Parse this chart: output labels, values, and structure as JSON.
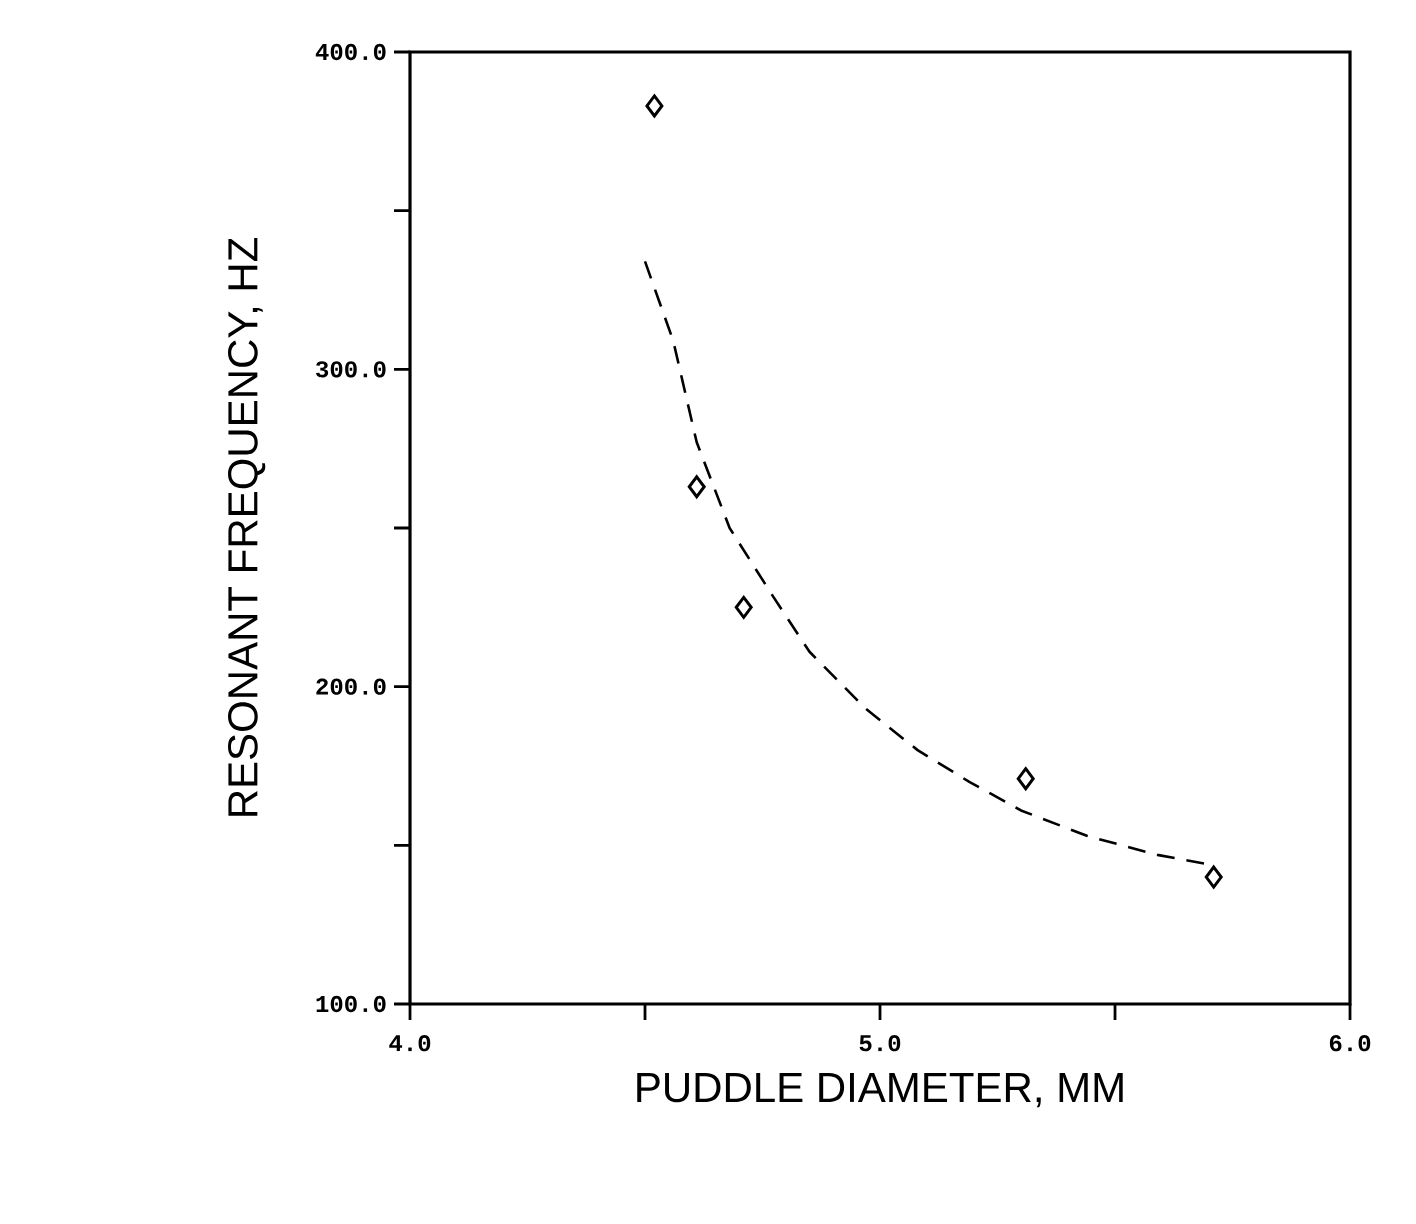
{
  "chart_data": {
    "type": "scatter",
    "xlabel": "PUDDLE DIAMETER, MM",
    "ylabel": "RESONANT FREQUENCY, HZ",
    "xlim": [
      4.0,
      6.0
    ],
    "ylim": [
      100,
      400
    ],
    "xticks": [
      {
        "value": 4.0,
        "label": "4.0"
      },
      {
        "value": 4.5,
        "label": null
      },
      {
        "value": 5.0,
        "label": "5.0"
      },
      {
        "value": 5.5,
        "label": null
      },
      {
        "value": 6.0,
        "label": "6.0"
      }
    ],
    "yticks": [
      {
        "value": 100,
        "label": "100.0"
      },
      {
        "value": 150,
        "label": null
      },
      {
        "value": 200,
        "label": "200.0"
      },
      {
        "value": 250,
        "label": null
      },
      {
        "value": 300,
        "label": "300.0"
      },
      {
        "value": 350,
        "label": null
      },
      {
        "value": 400,
        "label": "400.0"
      }
    ],
    "grid": false,
    "legend": false,
    "series": [
      {
        "type": "scatter",
        "marker": "diamond",
        "color": "#000000",
        "x": [
          4.52,
          4.61,
          4.71,
          5.31,
          5.71
        ],
        "values": [
          383,
          263,
          225,
          171,
          140
        ]
      },
      {
        "type": "line",
        "marker": "none",
        "line_style": "dashed",
        "color": "#000000",
        "x": [
          4.5,
          4.56,
          4.61,
          4.68,
          4.77,
          4.85,
          4.97,
          5.08,
          5.19,
          5.3,
          5.44,
          5.59,
          5.7
        ],
        "values": [
          334,
          309,
          277,
          250,
          229,
          211,
          193,
          180,
          170,
          161,
          153,
          147,
          144
        ]
      }
    ]
  }
}
